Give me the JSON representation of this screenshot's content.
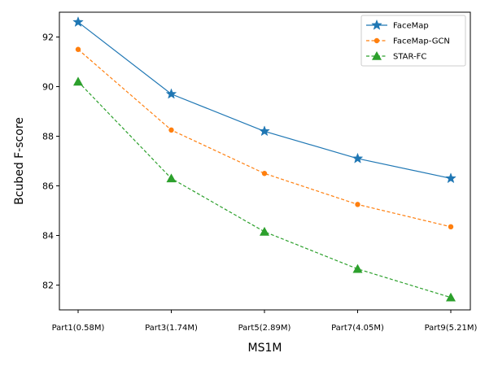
{
  "chart_data": {
    "type": "line",
    "title": "",
    "xlabel": "MS1M",
    "ylabel": "Bcubed  F-score",
    "categories": [
      "Part1(0.58M)",
      "Part3(1.74M)",
      "Part5(2.89M)",
      "Part7(4.05M)",
      "Part9(5.21M)"
    ],
    "ylim": [
      81.0,
      93.0
    ],
    "yticks": [
      82,
      84,
      86,
      88,
      90,
      92
    ],
    "grid": false,
    "legend_position": "top-right",
    "series": [
      {
        "name": "FaceMap",
        "values": [
          92.6,
          89.7,
          88.2,
          87.1,
          86.3
        ],
        "color": "#1f77b4",
        "line_style": "solid",
        "marker": "star"
      },
      {
        "name": "FaceMap-GCN",
        "values": [
          91.5,
          88.25,
          86.5,
          85.25,
          84.35
        ],
        "color": "#ff7f0e",
        "line_style": "dashed",
        "marker": "circle"
      },
      {
        "name": "STAR-FC",
        "values": [
          90.2,
          86.3,
          84.15,
          82.65,
          81.5
        ],
        "color": "#2ca02c",
        "line_style": "dashed",
        "marker": "triangle"
      }
    ]
  }
}
